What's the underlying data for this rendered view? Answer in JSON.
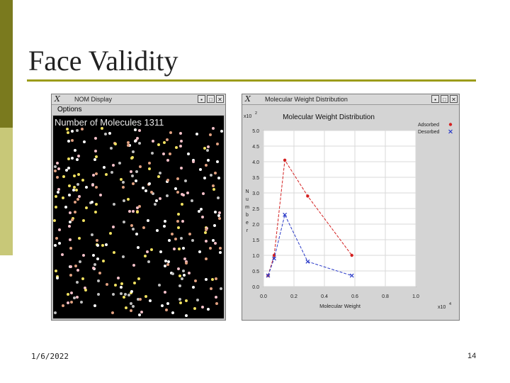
{
  "slide": {
    "title": "Face Validity",
    "date": "1/6/2022",
    "page_number": "14",
    "accent_dark": "#7a7a1e",
    "accent_light": "#c8c878",
    "rule_color": "#9c9c1a"
  },
  "nom_window": {
    "title": "NOM Display",
    "icon": "x-app-icon",
    "menu_options": "Options",
    "molecule_count_text": "Number of Molecules  1311",
    "molecule_colors": [
      "#ffffff",
      "#f4c0c8",
      "#f0e060",
      "#c0c0c0",
      "#e0a080"
    ],
    "buttons": [
      "minimize",
      "maximize",
      "close"
    ]
  },
  "mwd_window": {
    "title": "Molecular Weight Distribution",
    "icon": "x-app-icon",
    "buttons": [
      "minimize",
      "maximize",
      "close"
    ]
  },
  "chart_data": {
    "type": "line",
    "title": "Molecular Weight Distribution",
    "xlabel": "Molecular Weight",
    "ylabel": "N u m b e r",
    "x_multiplier": "x10",
    "x_multiplier_exp": "4",
    "y_multiplier": "x10",
    "y_multiplier_exp": "2",
    "xlim": [
      0.0,
      1.0
    ],
    "ylim": [
      0.0,
      5.0
    ],
    "x_ticks": [
      "0.0",
      "0.2",
      "0.4",
      "0.6",
      "0.8",
      "1.0"
    ],
    "y_ticks": [
      "0.0",
      "0.5",
      "1.0",
      "1.5",
      "2.0",
      "2.5",
      "3.0",
      "3.5",
      "4.0",
      "4.5",
      "5.0"
    ],
    "grid": true,
    "legend_position": "top-right",
    "series": [
      {
        "name": "Adsorbed",
        "color": "#d42020",
        "marker": "circle",
        "x": [
          0.03,
          0.07,
          0.14,
          0.29,
          0.58
        ],
        "y": [
          0.35,
          1.0,
          4.05,
          2.9,
          1.0
        ]
      },
      {
        "name": "Desorbed",
        "color": "#2a3ac8",
        "marker": "x",
        "x": [
          0.03,
          0.07,
          0.14,
          0.29,
          0.58
        ],
        "y": [
          0.35,
          0.9,
          2.3,
          0.8,
          0.35
        ]
      }
    ]
  }
}
